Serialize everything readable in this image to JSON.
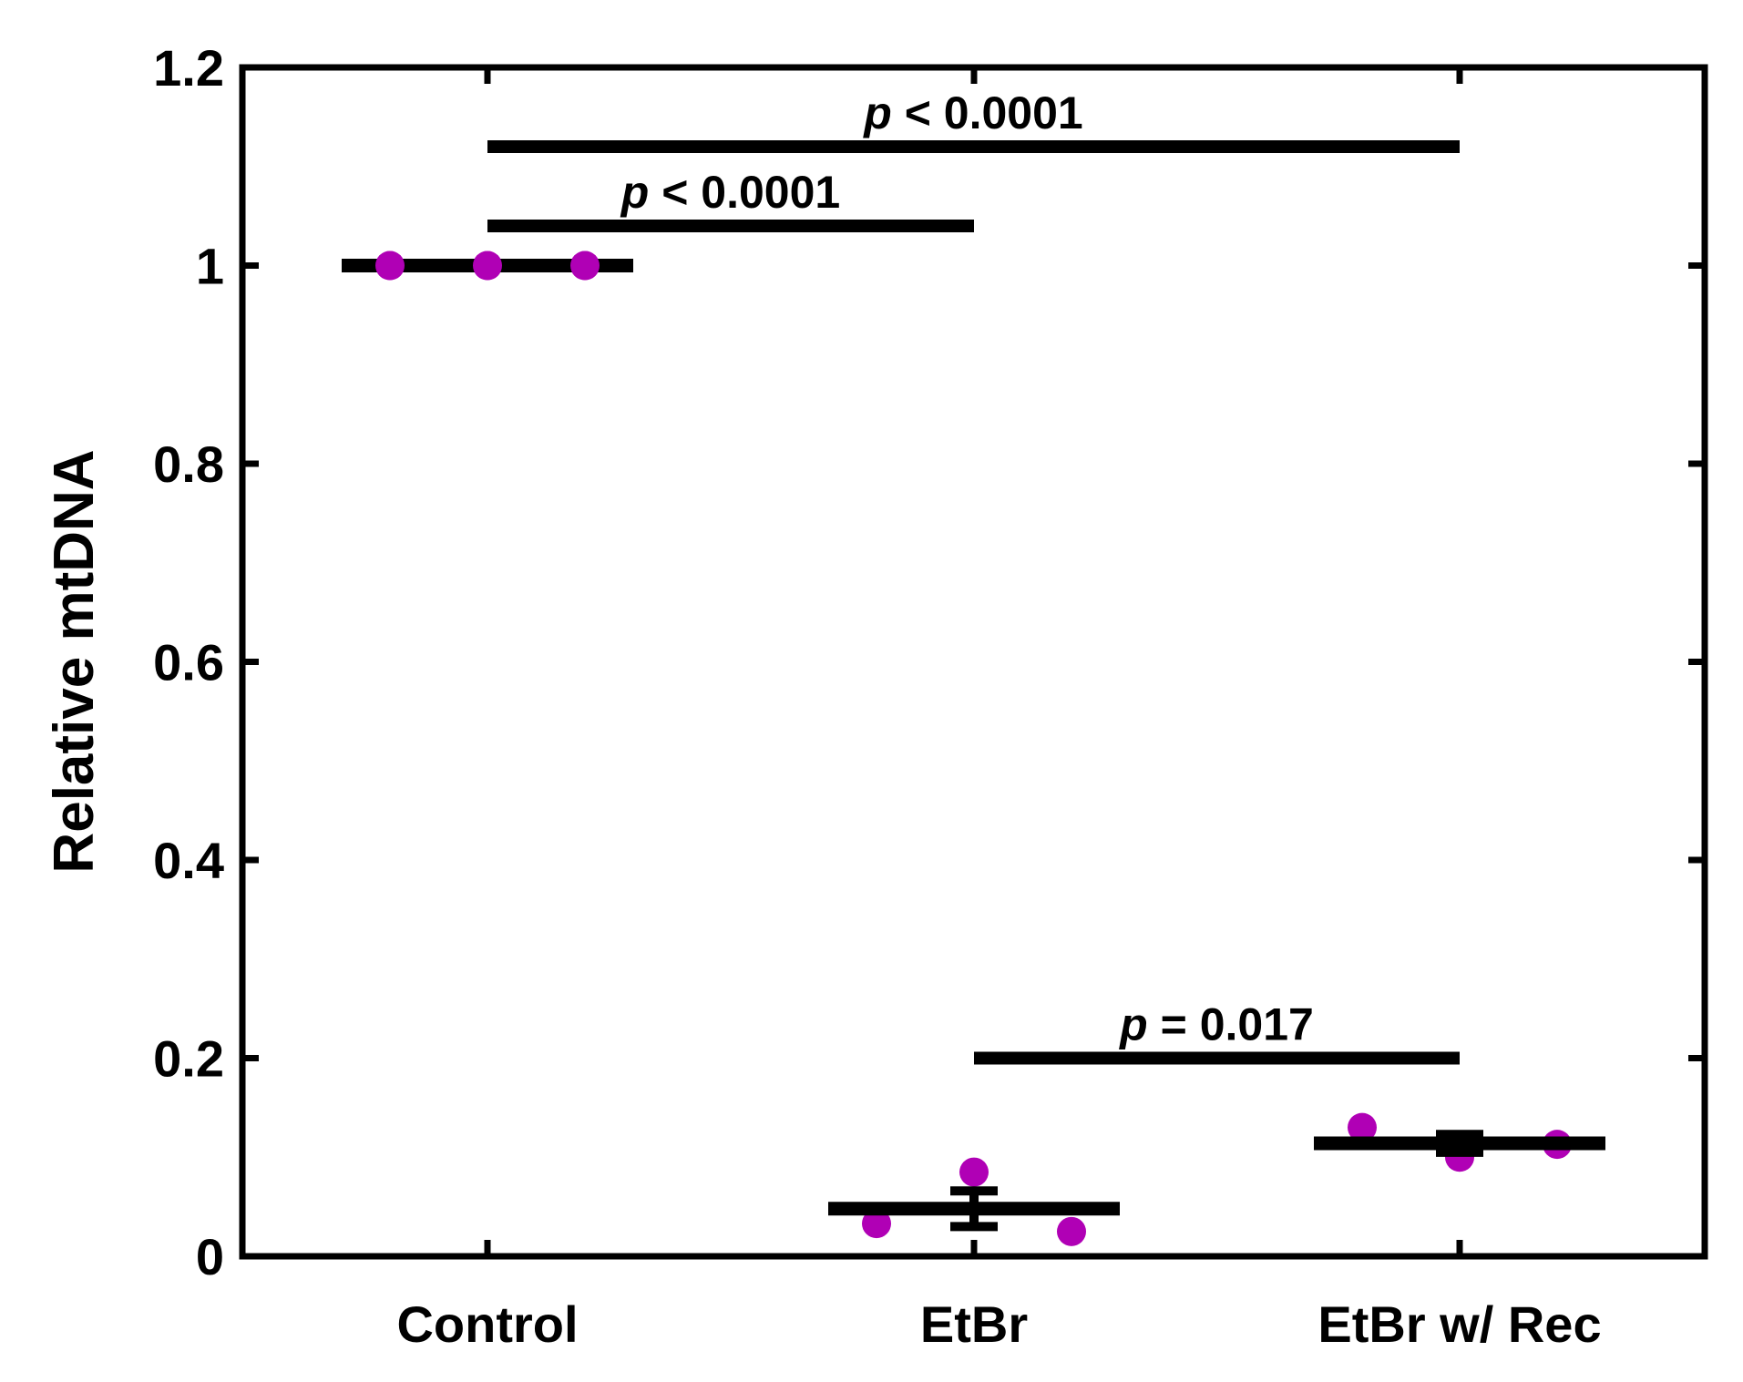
{
  "chart_data": {
    "type": "scatter",
    "title": "",
    "xlabel": "",
    "ylabel": "Relative mtDNA",
    "categories": [
      "Control",
      "EtBr",
      "EtBr w/ Rec"
    ],
    "ylim": [
      0,
      1.2
    ],
    "yticks": [
      "0",
      "0.2",
      "0.4",
      "0.6",
      "0.8",
      "1",
      "1.2"
    ],
    "point_color": "#b000b5",
    "groups": [
      {
        "category": "Control",
        "points": [
          1.0,
          1.0,
          1.0
        ],
        "mean": 1.0,
        "sem": 0.0
      },
      {
        "category": "EtBr",
        "points": [
          0.033,
          0.085,
          0.025
        ],
        "mean": 0.048,
        "sem": 0.018
      },
      {
        "category": "EtBr w/ Rec",
        "points": [
          0.13,
          0.1,
          0.113
        ],
        "mean": 0.114,
        "sem": 0.009
      }
    ],
    "annotations": [
      {
        "p_symbol": "p",
        "text": " < 0.0001",
        "from": "Control",
        "to": "EtBr w/ Rec",
        "y": 1.12
      },
      {
        "p_symbol": "p",
        "text": " < 0.0001",
        "from": "Control",
        "to": "EtBr",
        "y": 1.04
      },
      {
        "p_symbol": "p",
        "text": " = 0.017",
        "from": "EtBr",
        "to": "EtBr w/ Rec",
        "y": 0.2
      }
    ]
  }
}
